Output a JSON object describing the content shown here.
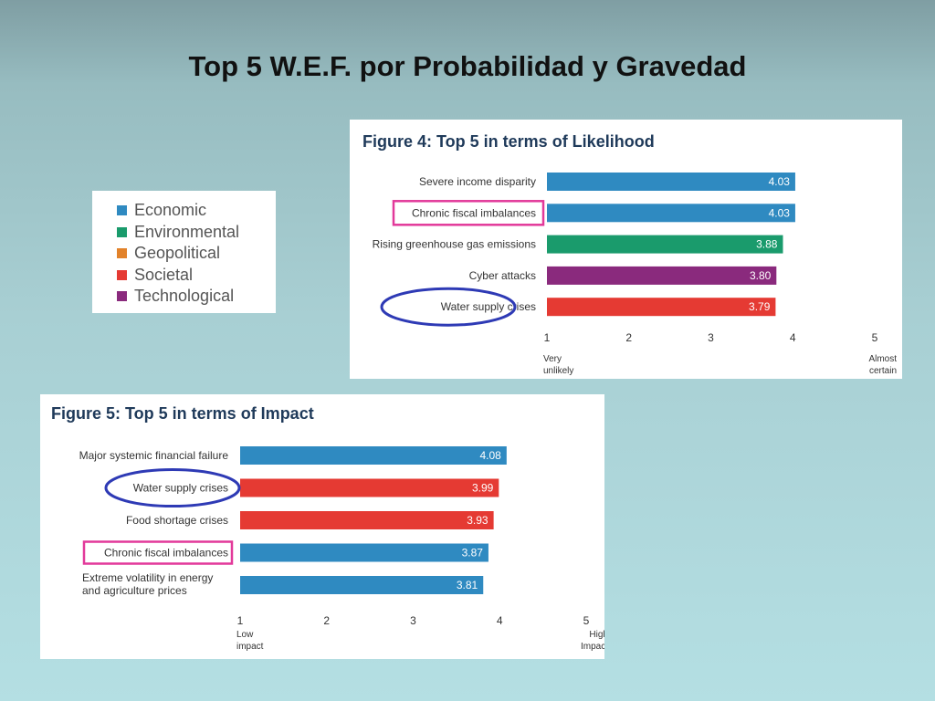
{
  "slide": {
    "title": "Top 5 W.E.F. por Probabilidad y Gravedad"
  },
  "legend": {
    "items": [
      {
        "label": "Economic",
        "color": "#2f8ac1"
      },
      {
        "label": "Environmental",
        "color": "#1a9b6c"
      },
      {
        "label": "Geopolitical",
        "color": "#e2822a"
      },
      {
        "label": "Societal",
        "color": "#e53a33"
      },
      {
        "label": "Technological",
        "color": "#8a2a7d"
      }
    ]
  },
  "highlight_colors": {
    "pink": "#e2399a",
    "blue": "#2e3ab5"
  },
  "chart_data": [
    {
      "type": "bar",
      "orientation": "horizontal",
      "title": "Figure 4: Top 5 in terms of  Likelihood",
      "categories": [
        "Severe income disparity",
        "Chronic fiscal imbalances",
        "Rising greenhouse gas emissions",
        "Cyber attacks",
        "Water supply crises"
      ],
      "values": [
        4.03,
        4.03,
        3.88,
        3.8,
        3.79
      ],
      "value_labels": [
        "4.03",
        "4.03",
        "3.88",
        "3.80",
        "3.79"
      ],
      "bar_colors": [
        "#2f8ac1",
        "#2f8ac1",
        "#1a9b6c",
        "#8a2a7d",
        "#e53a33"
      ],
      "highlights": [
        "",
        "pink",
        "",
        "",
        "blue"
      ],
      "xlim": [
        1,
        5
      ],
      "ticks": [
        "1",
        "2",
        "3",
        "4",
        "5"
      ],
      "low_label": [
        "Very",
        "unlikely"
      ],
      "high_label": [
        "Almost",
        "certain"
      ],
      "grid": false
    },
    {
      "type": "bar",
      "orientation": "horizontal",
      "title": "Figure 5: Top 5 in terms of  Impact",
      "categories": [
        "Major systemic financial failure",
        "Water supply crises",
        "Food shortage crises",
        "Chronic fiscal imbalances",
        "Extreme volatility in energy and agriculture prices"
      ],
      "category_lines": [
        [
          "Major systemic financial failure"
        ],
        [
          "Water supply crises"
        ],
        [
          "Food shortage crises"
        ],
        [
          "Chronic fiscal imbalances"
        ],
        [
          "Extreme volatility in energy",
          "and agriculture prices"
        ]
      ],
      "values": [
        4.08,
        3.99,
        3.93,
        3.87,
        3.81
      ],
      "value_labels": [
        "4.08",
        "3.99",
        "3.93",
        "3.87",
        "3.81"
      ],
      "bar_colors": [
        "#2f8ac1",
        "#e53a33",
        "#e53a33",
        "#2f8ac1",
        "#2f8ac1"
      ],
      "highlights": [
        "",
        "blue",
        "",
        "pink",
        ""
      ],
      "xlim": [
        1,
        5
      ],
      "ticks": [
        "1",
        "2",
        "3",
        "4",
        "5"
      ],
      "low_label": [
        "Low",
        "impact"
      ],
      "high_label": [
        "High",
        "Impact"
      ],
      "grid": false
    }
  ]
}
